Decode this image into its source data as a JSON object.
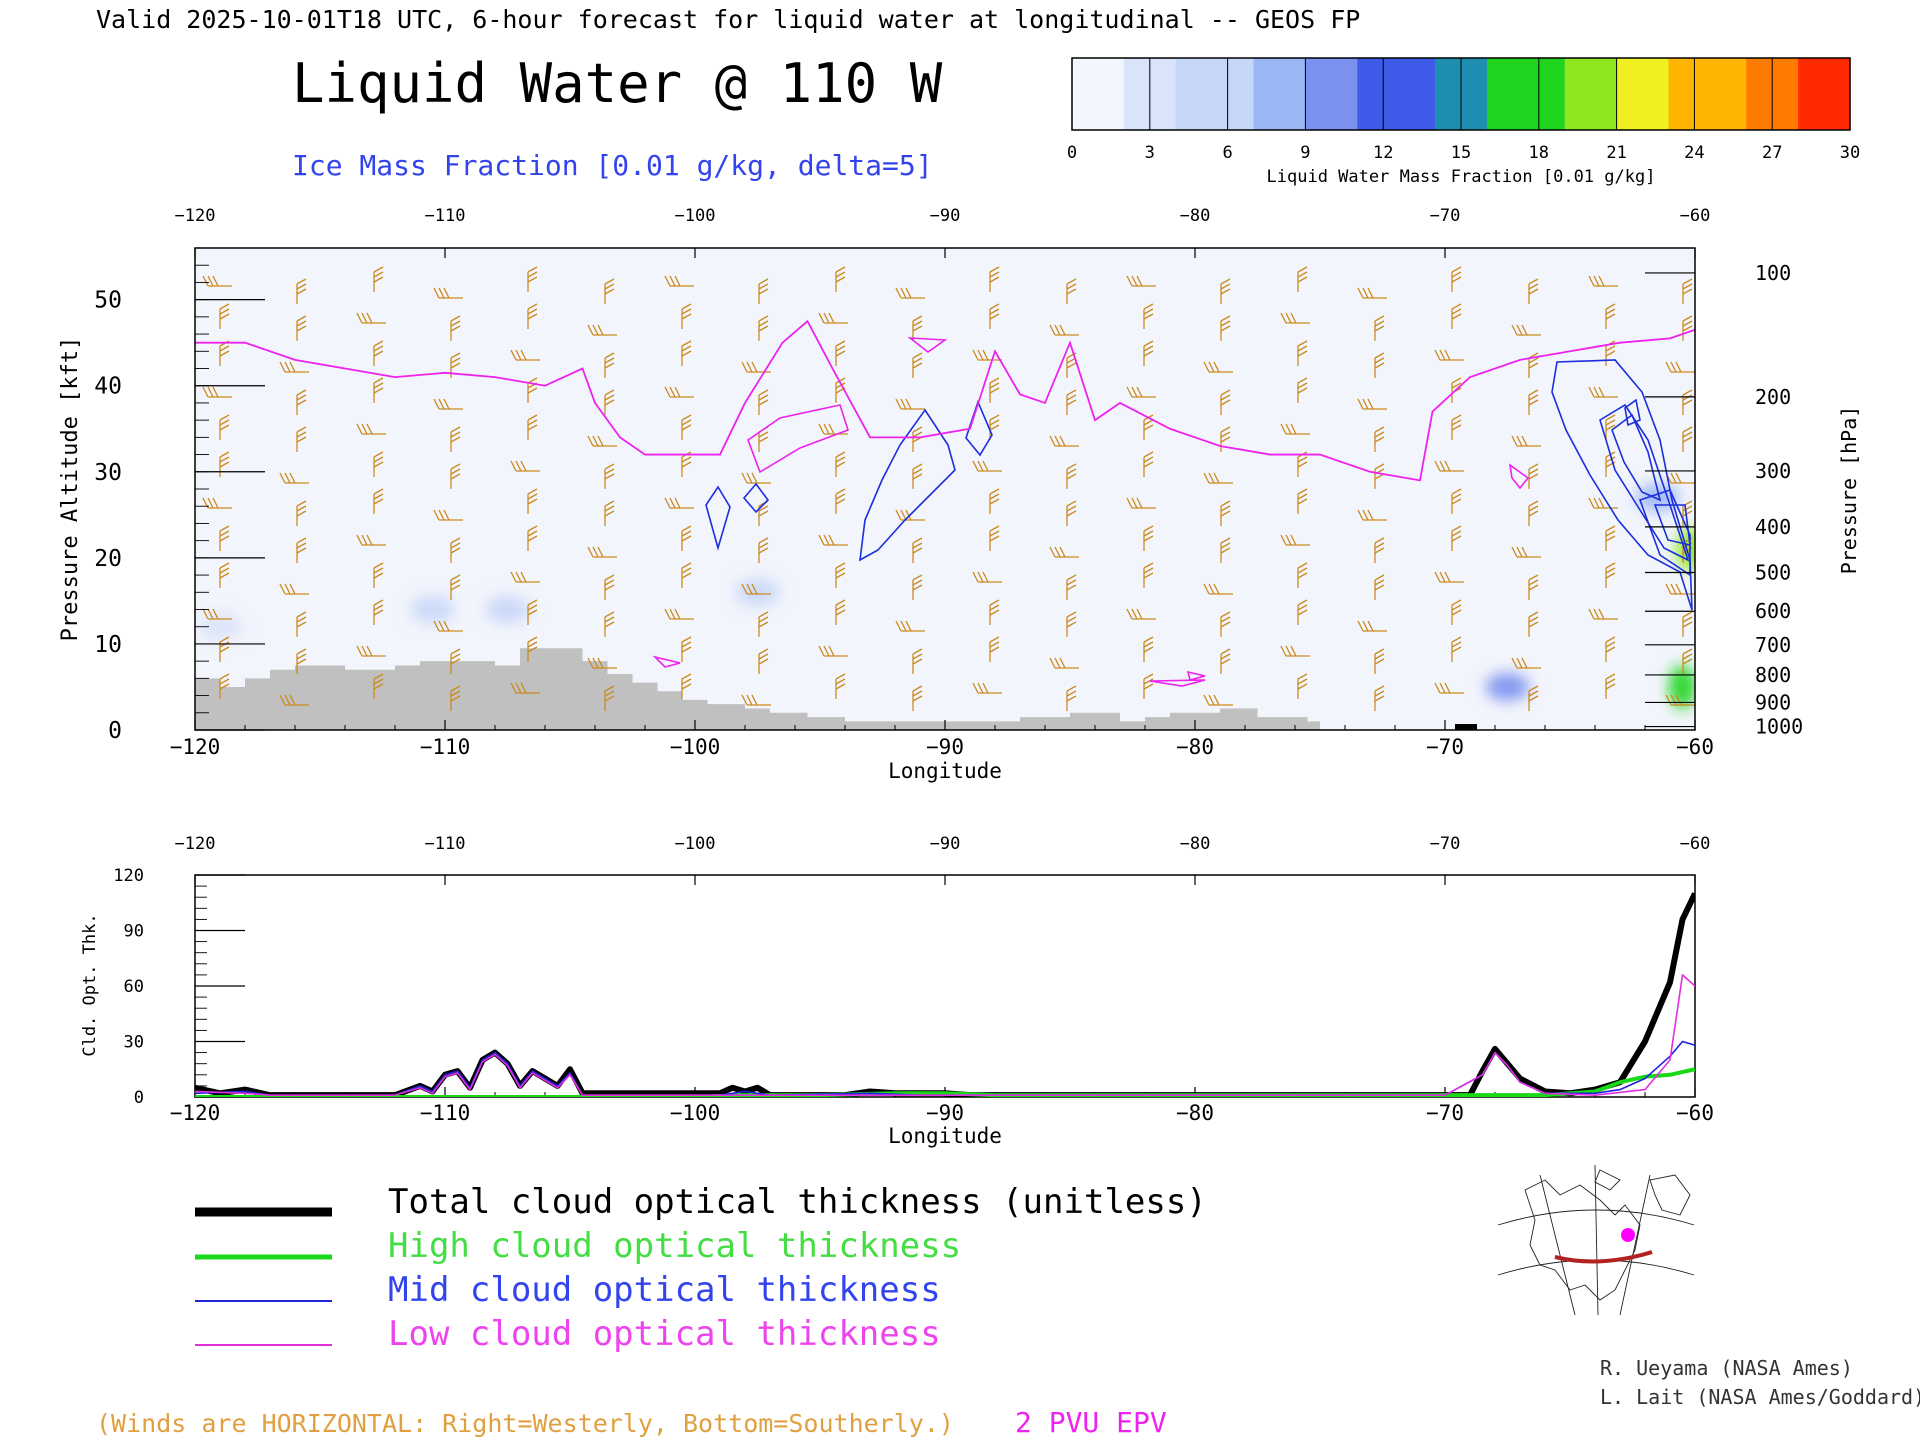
{
  "header": {
    "valid_line": "Valid 2025-10-01T18 UTC, 6-hour forecast for liquid water at longitudinal -- GEOS FP",
    "title": "Liquid Water @ 110 W",
    "subtitle": "Ice Mass Fraction [0.01 g/kg, delta=5]"
  },
  "colorbar": {
    "ticks": [
      "0",
      "3",
      "6",
      "9",
      "12",
      "15",
      "18",
      "21",
      "24",
      "27",
      "30"
    ],
    "label": "Liquid Water Mass Fraction [0.01 g/kg]",
    "colors": [
      "#f4f6fd",
      "#c6d6f7",
      "#9bb6f4",
      "#7b91f0",
      "#3f5be9",
      "#1e8fb0",
      "#1fd41f",
      "#8fe620",
      "#f0f020",
      "#ffb400",
      "#ff7a00",
      "#ff2a00"
    ]
  },
  "colors": {
    "wind_barb": "#cc8a1e",
    "ice_contour": "#1a2edc",
    "pv_contour": "#ee22ee",
    "terrain": "#c0c0c0",
    "total": "#000000",
    "high": "#18d818",
    "mid": "#2222dd",
    "low": "#e030e0",
    "note": "#e0a040",
    "credit": "#333333"
  },
  "chart_data": [
    {
      "type": "heatmap",
      "title": "Liquid Water @ 110 W",
      "xlabel": "Longitude",
      "ylabel": "Pressure Altitude [kft]",
      "ylabel_right": "Pressure [hPa]",
      "xlim": [
        -120,
        -60
      ],
      "ylim": [
        0,
        56
      ],
      "x_ticks": [
        -120,
        -110,
        -100,
        -90,
        -80,
        -70,
        -60
      ],
      "x_tick_labels": [
        "−120",
        "−110",
        "−100",
        "−90",
        "−80",
        "−70",
        "−60"
      ],
      "y_ticks": [
        0,
        10,
        20,
        30,
        40,
        50
      ],
      "y_tick_labels": [
        "0",
        "10",
        "20",
        "30",
        "40",
        "50"
      ],
      "pressure_levels": [
        {
          "label": "100",
          "kft": 53.1
        },
        {
          "label": "200",
          "kft": 38.7
        },
        {
          "label": "300",
          "kft": 30.1
        },
        {
          "label": "400",
          "kft": 23.6
        },
        {
          "label": "500",
          "kft": 18.3
        },
        {
          "label": "600",
          "kft": 13.8
        },
        {
          "label": "700",
          "kft": 9.9
        },
        {
          "label": "800",
          "kft": 6.4
        },
        {
          "label": "900",
          "kft": 3.2
        },
        {
          "label": "1000",
          "kft": 0.4
        }
      ],
      "terrain_kft": [
        [
          -120,
          6
        ],
        [
          -119,
          5
        ],
        [
          -118,
          6
        ],
        [
          -117,
          7
        ],
        [
          -116,
          7.5
        ],
        [
          -114,
          7
        ],
        [
          -113,
          7
        ],
        [
          -112,
          7.5
        ],
        [
          -111,
          8
        ],
        [
          -109,
          8
        ],
        [
          -108,
          7.5
        ],
        [
          -107,
          9.5
        ],
        [
          -105,
          9.5
        ],
        [
          -104.5,
          8
        ],
        [
          -103.5,
          6.5
        ],
        [
          -102.5,
          5.5
        ],
        [
          -101.5,
          4.5
        ],
        [
          -100.5,
          3.5
        ],
        [
          -99.5,
          3
        ],
        [
          -98,
          2.5
        ],
        [
          -97,
          2
        ],
        [
          -95.5,
          1.5
        ],
        [
          -94,
          1
        ],
        [
          -90,
          1
        ],
        [
          -87,
          1.5
        ],
        [
          -85,
          2
        ],
        [
          -83,
          1
        ],
        [
          -82,
          1.5
        ],
        [
          -81,
          2
        ],
        [
          -79,
          2.5
        ],
        [
          -77.5,
          1.5
        ],
        [
          -75.5,
          1
        ],
        [
          -75,
          0
        ]
      ],
      "pv_2pvu_kft": [
        [
          -120,
          45
        ],
        [
          -118,
          45
        ],
        [
          -116,
          43
        ],
        [
          -114,
          42
        ],
        [
          -112,
          41
        ],
        [
          -110,
          41.5
        ],
        [
          -108,
          41
        ],
        [
          -106,
          40
        ],
        [
          -104.5,
          42
        ],
        [
          -104,
          38
        ],
        [
          -103,
          34
        ],
        [
          -102,
          32
        ],
        [
          -100,
          32
        ],
        [
          -99,
          32
        ],
        [
          -98,
          38
        ],
        [
          -96.5,
          45
        ],
        [
          -95.5,
          47.5
        ],
        [
          -94.5,
          42
        ],
        [
          -93,
          34
        ],
        [
          -91,
          34
        ],
        [
          -89,
          35
        ],
        [
          -88,
          44
        ],
        [
          -87,
          39
        ],
        [
          -86,
          38
        ],
        [
          -85,
          45
        ],
        [
          -84,
          36
        ],
        [
          -83,
          38
        ],
        [
          -81,
          35
        ],
        [
          -79,
          33
        ],
        [
          -77,
          32
        ],
        [
          -75,
          32
        ],
        [
          -73,
          30
        ],
        [
          -71,
          29
        ],
        [
          -70.5,
          37
        ],
        [
          -69,
          41
        ],
        [
          -67,
          43
        ],
        [
          -65,
          44
        ],
        [
          -63,
          45
        ],
        [
          -61,
          45.5
        ],
        [
          -60,
          46.5
        ]
      ],
      "liquid_water_max_fraction": 30,
      "liquid_water_cores": [
        {
          "lon": -60.2,
          "kft": 21,
          "value": 21
        },
        {
          "lon": -60.5,
          "kft": 5,
          "value": 18
        },
        {
          "lon": -67.5,
          "kft": 5,
          "value": 9
        },
        {
          "lon": -61.5,
          "kft": 27,
          "value": 8
        },
        {
          "lon": -107.5,
          "kft": 14,
          "value": 5
        },
        {
          "lon": -110.5,
          "kft": 14,
          "value": 4
        },
        {
          "lon": -97.5,
          "kft": 16,
          "value": 4
        },
        {
          "lon": -119,
          "kft": 12,
          "value": 3
        }
      ]
    },
    {
      "type": "line",
      "ylabel": "Cld. Opt. Thk.",
      "xlabel": "Longitude",
      "xlim": [
        -120,
        -60
      ],
      "ylim": [
        0,
        120
      ],
      "y_ticks": [
        0,
        30,
        60,
        90,
        120
      ],
      "y_tick_labels": [
        "0",
        "30",
        "60",
        "90",
        "120"
      ],
      "x_tick_labels": [
        "−120",
        "−110",
        "−100",
        "−90",
        "−80",
        "−70",
        "−60"
      ],
      "series": [
        {
          "name": "Total cloud optical thickness (unitless)",
          "key": "total",
          "points": [
            [
              -120,
              5
            ],
            [
              -119,
              2
            ],
            [
              -118,
              4
            ],
            [
              -117,
              1
            ],
            [
              -112,
              1
            ],
            [
              -111,
              6
            ],
            [
              -110.5,
              3
            ],
            [
              -110,
              12
            ],
            [
              -109.5,
              14
            ],
            [
              -109,
              5
            ],
            [
              -108.5,
              20
            ],
            [
              -108,
              24
            ],
            [
              -107.5,
              18
            ],
            [
              -107,
              6
            ],
            [
              -106.5,
              14
            ],
            [
              -106,
              10
            ],
            [
              -105.5,
              6
            ],
            [
              -105,
              15
            ],
            [
              -104.5,
              2
            ],
            [
              -99,
              2
            ],
            [
              -98.5,
              5
            ],
            [
              -98,
              3
            ],
            [
              -97.5,
              5
            ],
            [
              -97,
              1
            ],
            [
              -94,
              1
            ],
            [
              -93,
              3
            ],
            [
              -92,
              2
            ],
            [
              -91,
              2
            ],
            [
              -90,
              2
            ],
            [
              -89,
              1
            ],
            [
              -70,
              1
            ],
            [
              -69,
              1
            ],
            [
              -68.5,
              14
            ],
            [
              -68,
              26
            ],
            [
              -67.5,
              18
            ],
            [
              -67,
              10
            ],
            [
              -66,
              3
            ],
            [
              -65,
              2
            ],
            [
              -64,
              4
            ],
            [
              -63,
              8
            ],
            [
              -62,
              30
            ],
            [
              -61,
              62
            ],
            [
              -60.5,
              96
            ],
            [
              -60,
              110
            ]
          ]
        },
        {
          "name": "High cloud optical thickness",
          "key": "high",
          "points": [
            [
              -120,
              0
            ],
            [
              -100,
              0
            ],
            [
              -98,
              1
            ],
            [
              -95,
              1
            ],
            [
              -92,
              2
            ],
            [
              -90,
              2
            ],
            [
              -88,
              1
            ],
            [
              -80,
              1
            ],
            [
              -70,
              1
            ],
            [
              -66,
              1
            ],
            [
              -64,
              3
            ],
            [
              -63,
              8
            ],
            [
              -62,
              11
            ],
            [
              -61,
              12
            ],
            [
              -60,
              15
            ]
          ]
        },
        {
          "name": "Mid cloud optical thickness",
          "key": "mid",
          "points": [
            [
              -120,
              2
            ],
            [
              -118,
              3
            ],
            [
              -117,
              1
            ],
            [
              -112,
              1
            ],
            [
              -111,
              6
            ],
            [
              -110.5,
              3
            ],
            [
              -110,
              12
            ],
            [
              -109.5,
              14
            ],
            [
              -109,
              5
            ],
            [
              -108.5,
              20
            ],
            [
              -108,
              24
            ],
            [
              -107.5,
              18
            ],
            [
              -107,
              6
            ],
            [
              -106.5,
              14
            ],
            [
              -106,
              10
            ],
            [
              -105.5,
              6
            ],
            [
              -105,
              13
            ],
            [
              -104.5,
              1
            ],
            [
              -99,
              1
            ],
            [
              -98,
              3
            ],
            [
              -97,
              1
            ],
            [
              -93,
              2
            ],
            [
              -91,
              1
            ],
            [
              -70,
              1
            ],
            [
              -68.5,
              12
            ],
            [
              -68,
              24
            ],
            [
              -67.5,
              17
            ],
            [
              -67,
              8
            ],
            [
              -66,
              2
            ],
            [
              -64,
              2
            ],
            [
              -63,
              4
            ],
            [
              -62,
              10
            ],
            [
              -61,
              22
            ],
            [
              -60.5,
              30
            ],
            [
              -60,
              28
            ]
          ]
        },
        {
          "name": "Low cloud optical thickness",
          "key": "low",
          "points": [
            [
              -120,
              3
            ],
            [
              -118,
              2
            ],
            [
              -117,
              1
            ],
            [
              -112,
              1
            ],
            [
              -111,
              5
            ],
            [
              -110.5,
              2
            ],
            [
              -110,
              11
            ],
            [
              -109.5,
              13
            ],
            [
              -109,
              4
            ],
            [
              -108.5,
              19
            ],
            [
              -108,
              23
            ],
            [
              -107.5,
              17
            ],
            [
              -107,
              5
            ],
            [
              -106.5,
              13
            ],
            [
              -106,
              9
            ],
            [
              -105.5,
              5
            ],
            [
              -105,
              12
            ],
            [
              -104.5,
              1
            ],
            [
              -99,
              1
            ],
            [
              -97,
              1
            ],
            [
              -70,
              1
            ],
            [
              -68.5,
              12
            ],
            [
              -68,
              24
            ],
            [
              -67.5,
              17
            ],
            [
              -67,
              8
            ],
            [
              -66,
              2
            ],
            [
              -64,
              1
            ],
            [
              -62,
              4
            ],
            [
              -61,
              20
            ],
            [
              -60.5,
              66
            ],
            [
              -60,
              60
            ]
          ]
        }
      ]
    }
  ],
  "legend": {
    "total": "Total cloud optical thickness (unitless)",
    "high": "High cloud optical thickness",
    "mid": "Mid cloud optical thickness",
    "low": "Low cloud optical thickness"
  },
  "footer": {
    "winds_note": "(Winds are HORIZONTAL: Right=Westerly, Bottom=Southerly.)",
    "pv_label": "2 PVU EPV",
    "credit_1": "R. Ueyama (NASA Ames)",
    "credit_2": "L. Lait (NASA Ames/Goddard)"
  }
}
